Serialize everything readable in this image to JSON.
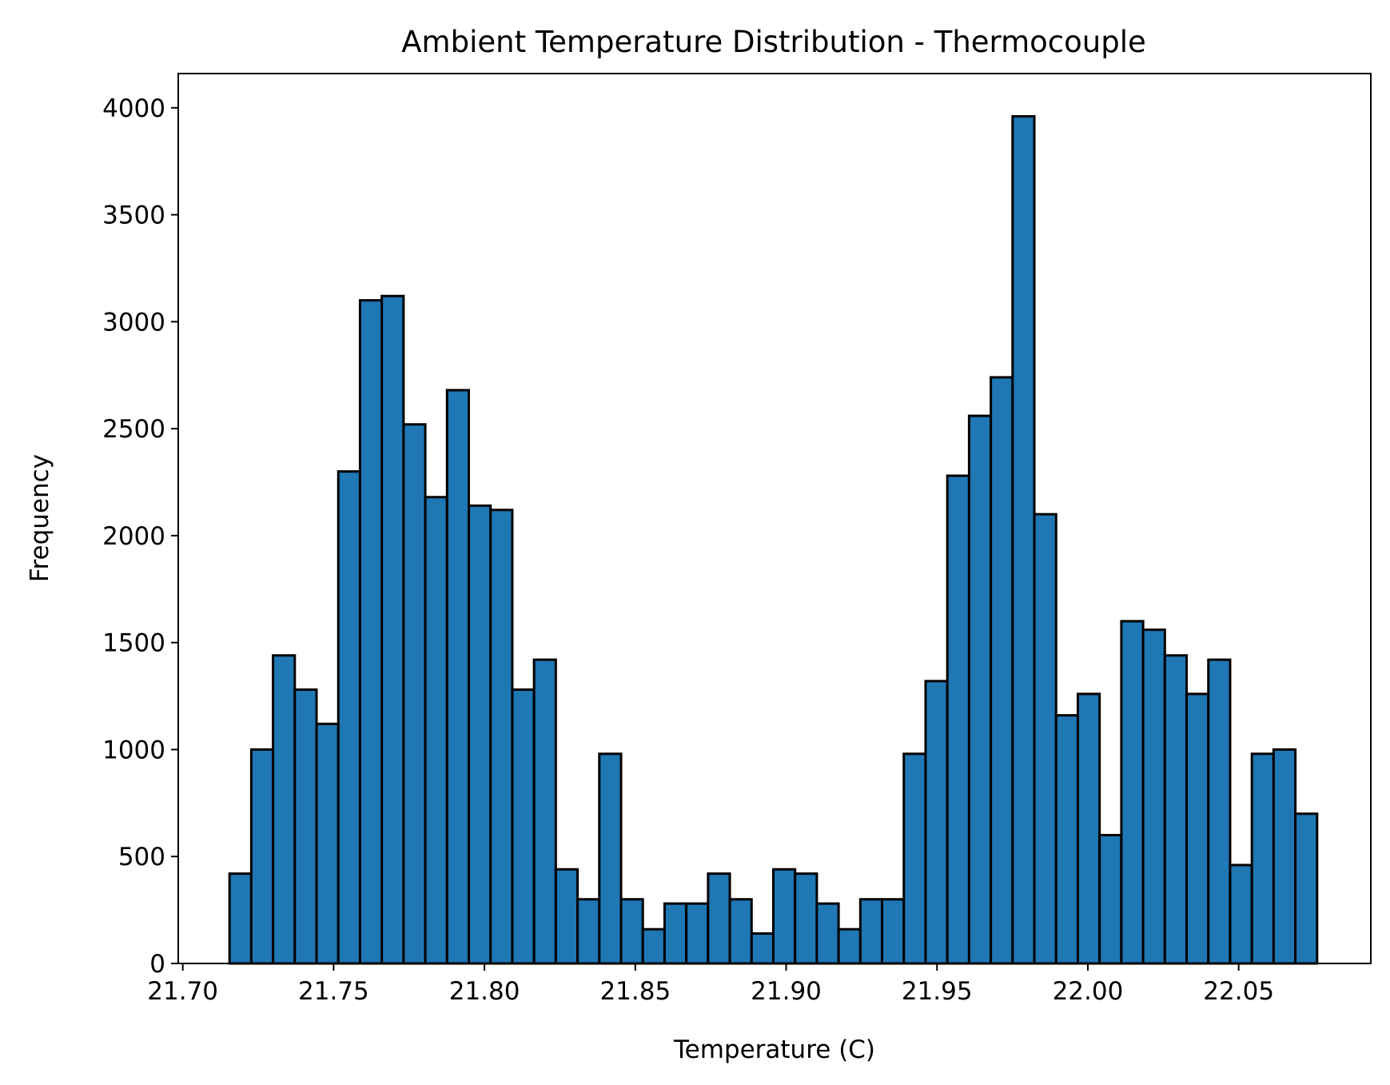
{
  "chart_data": {
    "type": "bar",
    "subtype": "histogram",
    "title": "Ambient Temperature Distribution - Thermocouple",
    "xlabel": "Temperature (C)",
    "ylabel": "Frequency",
    "xlim": [
      21.6985,
      22.0938
    ],
    "ylim": [
      0,
      4160
    ],
    "xticks": [
      "21.70",
      "21.75",
      "21.80",
      "21.85",
      "21.90",
      "21.95",
      "22.00",
      "22.05"
    ],
    "xtick_values": [
      21.7,
      21.75,
      21.8,
      21.85,
      21.9,
      21.95,
      22.0,
      22.05
    ],
    "yticks": [
      "0",
      "500",
      "1000",
      "1500",
      "2000",
      "2500",
      "3000",
      "3500",
      "4000"
    ],
    "ytick_values": [
      0,
      500,
      1000,
      1500,
      2000,
      2500,
      3000,
      3500,
      4000
    ],
    "bin_start": 21.7155,
    "bin_width": 0.00721,
    "values": [
      420,
      1000,
      1440,
      1280,
      1120,
      2300,
      3100,
      3120,
      2520,
      2180,
      2680,
      2140,
      2120,
      1280,
      1420,
      440,
      300,
      980,
      300,
      160,
      280,
      280,
      420,
      300,
      140,
      440,
      420,
      280,
      160,
      300,
      300,
      980,
      1320,
      2280,
      2560,
      2740,
      3960,
      2100,
      1160,
      1260,
      600,
      1600,
      1560,
      1440,
      1260,
      1420,
      460,
      980,
      1000,
      700
    ],
    "grid": false,
    "legend": false,
    "colors": {
      "bar_fill": "#1f77b4",
      "bar_edge": "#000000"
    }
  }
}
